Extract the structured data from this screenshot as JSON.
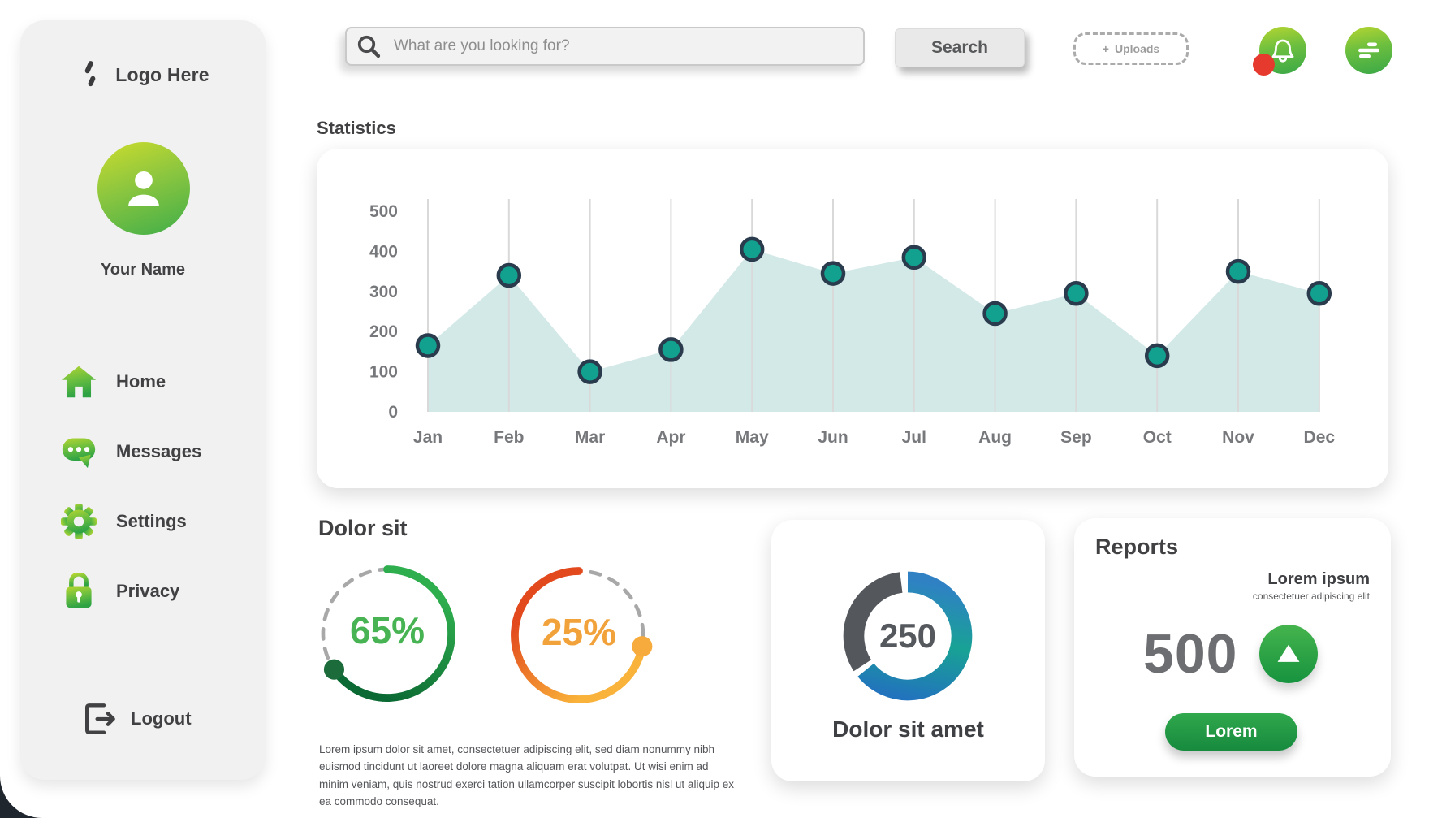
{
  "sidebar": {
    "logo_text": "Logo Here",
    "user_name": "Your Name",
    "items": [
      {
        "label": "Home",
        "icon": "home-icon"
      },
      {
        "label": "Messages",
        "icon": "messages-icon"
      },
      {
        "label": "Settings",
        "icon": "settings-icon"
      },
      {
        "label": "Privacy",
        "icon": "privacy-icon"
      }
    ],
    "logout_label": "Logout"
  },
  "topbar": {
    "search_placeholder": "What are you looking for?",
    "search_button_label": "Search",
    "uploads_plus": "+",
    "uploads_label": "Uploads",
    "notification_badge_color": "#e63a2e"
  },
  "statistics_heading": "Statistics",
  "chart_data": {
    "type": "area",
    "title": "Statistics",
    "categories": [
      "Jan",
      "Feb",
      "Mar",
      "Apr",
      "May",
      "Jun",
      "Jul",
      "Aug",
      "Sep",
      "Oct",
      "Nov",
      "Dec"
    ],
    "values": [
      165,
      340,
      100,
      155,
      405,
      345,
      385,
      245,
      295,
      140,
      350,
      295
    ],
    "ylim": [
      0,
      500
    ],
    "ytick_step": 100,
    "grid": "vertical-per-month",
    "legend": "none",
    "area_color": "#d3e9e7",
    "grid_color": "#d9d9d9",
    "point_fill": "#12a18e",
    "point_stroke": "#2a3b4d",
    "tick_color": "#77787b"
  },
  "gauges_section": {
    "heading": "Dolor sit",
    "dash_color": "#a8a8a8",
    "gauges": [
      {
        "label": "65%",
        "percent": 65,
        "solid_sweep_deg": 236,
        "direction": "cw",
        "arc_start_color": "#2fae4e",
        "arc_end_color": "#0b6a33",
        "dot_color": "#1c6b3b",
        "label_color": "#47b353"
      },
      {
        "label": "25%",
        "percent": 25,
        "solid_sweep_deg": 260,
        "direction": "ccw",
        "arc_start_color": "#e2491d",
        "arc_end_color": "#f9b23a",
        "dot_color": "#f6ab3c",
        "label_color": "#f2a23b"
      }
    ],
    "description": "Lorem ipsum dolor sit amet, consectetuer adipiscing elit, sed diam nonummy nibh euismod tincidunt ut laoreet dolore magna aliquam erat volutpat. Ut wisi enim ad minim veniam, quis nostrud exerci tation ullamcorper suscipit lobortis nisl ut aliquip ex ea commodo consequat."
  },
  "donut_card": {
    "value": "250",
    "caption": "Dolor sit amet",
    "ring": {
      "colored_from_deg": 0,
      "colored_to_deg": 231,
      "gray_from_deg": 237,
      "gray_to_deg": 353,
      "gray_color": "#54585d",
      "gradient_colors": [
        "#2f81c4",
        "#18a295",
        "#2273bd"
      ]
    }
  },
  "reports_card": {
    "heading": "Reports",
    "subtitle": "Lorem ipsum",
    "subtext": "consectetuer adipiscing elit",
    "value": "500",
    "trend_direction": "up",
    "trend_icon": "arrow-up-icon",
    "button_label": "Lorem"
  },
  "theme": {
    "brand_green_light": "#b5d531",
    "brand_green": "#3aa847",
    "sidebar_bg": "#f1f1f2",
    "text_dark": "#414042"
  }
}
